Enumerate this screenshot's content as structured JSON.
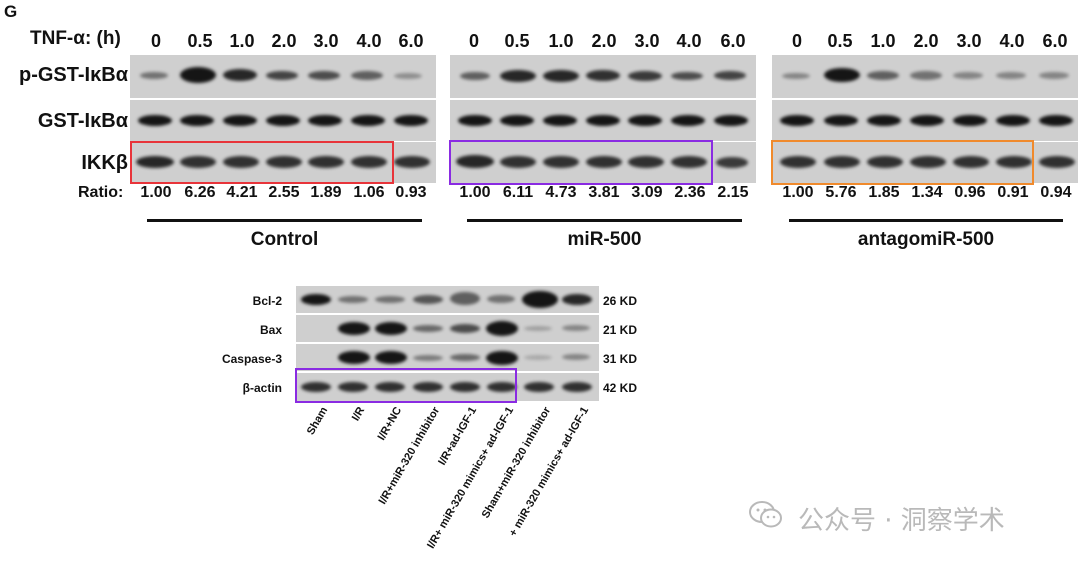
{
  "panel_letter": "G",
  "top_figure": {
    "tnf_label": "TNF-α: (h)",
    "time_points": [
      "0",
      "0.5",
      "1.0",
      "2.0",
      "3.0",
      "4.0",
      "6.0"
    ],
    "rows": [
      "p-GST-IκBα",
      "GST-IκBα",
      "IKKβ"
    ],
    "ratio_label": "Ratio:",
    "groups": [
      {
        "name": "Control",
        "ratios": [
          "1.00",
          "6.26",
          "4.21",
          "2.55",
          "1.89",
          "1.06",
          "0.93"
        ],
        "highlight_color": "#e8343a"
      },
      {
        "name": "miR-500",
        "ratios": [
          "1.00",
          "6.11",
          "4.73",
          "3.81",
          "3.09",
          "2.36",
          "2.15"
        ],
        "highlight_color": "#8a2be2"
      },
      {
        "name": "antagomiR-500",
        "ratios": [
          "1.00",
          "5.76",
          "1.85",
          "1.34",
          "0.96",
          "0.91",
          "0.94"
        ],
        "highlight_color": "#f08a2c"
      }
    ]
  },
  "bottom_figure": {
    "rows": [
      {
        "label": "Bcl-2",
        "size": "26 KD"
      },
      {
        "label": "Bax",
        "size": "21 KD"
      },
      {
        "label": "Caspase-3",
        "size": "31 KD"
      },
      {
        "label": "β-actin",
        "size": "42 KD"
      }
    ],
    "lanes": [
      "Sham",
      "I/R",
      "I/R+NC",
      "I/R+miR-320 inhibitor",
      "I/R+ad-IGF-1",
      "I/R+ miR-320 mimics+ ad-IGF-1",
      "Sham+miR-320 inhibitor",
      "+ miR-320 mimics+ ad-IGF-1"
    ],
    "highlight_color": "#8a2be2"
  },
  "watermark": {
    "text": "公众号 · 洞察学术"
  }
}
